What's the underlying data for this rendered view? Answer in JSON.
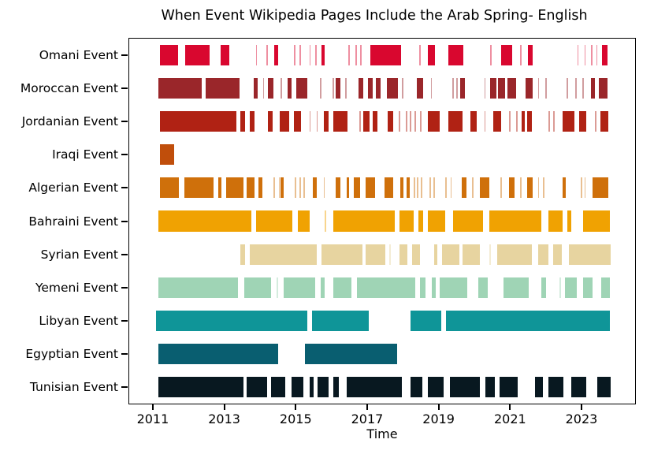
{
  "title": "When Event Wikipedia Pages Include the Arab Spring- English",
  "chart_data": {
    "type": "bar",
    "subtype": "broken-bar-timeline",
    "title": "When Event Wikipedia Pages Include the Arab Spring- English",
    "xlabel": "Time",
    "ylabel": "",
    "grid": false,
    "legend": "none",
    "xlim": [
      2010.34,
      2024.5
    ],
    "x_ticks": [
      "2011",
      "2013",
      "2015",
      "2017",
      "2019",
      "2021",
      "2023"
    ],
    "x_tick_values": [
      2011,
      2013,
      2015,
      2017,
      2019,
      2021,
      2023
    ],
    "rows": [
      {
        "label": "Omani Event",
        "color": "#d9072f",
        "segments": [
          [
            2011.2,
            2011.7
          ],
          [
            2011.9,
            2012.6
          ],
          [
            2012.9,
            2013.15
          ],
          [
            2013.88,
            2013.92
          ],
          [
            2014.18,
            2014.22
          ],
          [
            2014.4,
            2014.5
          ],
          [
            2014.95,
            2014.99
          ],
          [
            2015.1,
            2015.14
          ],
          [
            2015.38,
            2015.42
          ],
          [
            2015.55,
            2015.59
          ],
          [
            2015.72,
            2015.82
          ],
          [
            2016.48,
            2016.52
          ],
          [
            2016.68,
            2016.72
          ],
          [
            2016.8,
            2016.84
          ],
          [
            2017.1,
            2017.95
          ],
          [
            2018.46,
            2018.5
          ],
          [
            2018.7,
            2018.9
          ],
          [
            2019.28,
            2019.7
          ],
          [
            2020.44,
            2020.48
          ],
          [
            2020.75,
            2021.05
          ],
          [
            2021.28,
            2021.32
          ],
          [
            2021.5,
            2021.64
          ],
          [
            2022.88,
            2022.92
          ],
          [
            2023.08,
            2023.12
          ],
          [
            2023.26,
            2023.3
          ],
          [
            2023.41,
            2023.45
          ],
          [
            2023.58,
            2023.72
          ]
        ]
      },
      {
        "label": "Moroccan Event",
        "color": "#9a262a",
        "segments": [
          [
            2011.15,
            2012.36
          ],
          [
            2012.47,
            2013.42
          ],
          [
            2013.82,
            2013.94
          ],
          [
            2014.08,
            2014.12
          ],
          [
            2014.22,
            2014.38
          ],
          [
            2014.58,
            2014.62
          ],
          [
            2014.77,
            2014.89
          ],
          [
            2015.02,
            2015.33
          ],
          [
            2015.68,
            2015.72
          ],
          [
            2016.03,
            2016.07
          ],
          [
            2016.12,
            2016.26
          ],
          [
            2016.38,
            2016.42
          ],
          [
            2016.76,
            2016.89
          ],
          [
            2017.02,
            2017.15
          ],
          [
            2017.24,
            2017.37
          ],
          [
            2017.55,
            2017.87
          ],
          [
            2017.98,
            2018.02
          ],
          [
            2018.4,
            2018.56
          ],
          [
            2018.78,
            2018.82
          ],
          [
            2019.38,
            2019.42
          ],
          [
            2019.5,
            2019.54
          ],
          [
            2019.61,
            2019.73
          ],
          [
            2020.28,
            2020.32
          ],
          [
            2020.45,
            2020.61
          ],
          [
            2020.67,
            2020.87
          ],
          [
            2020.92,
            2021.16
          ],
          [
            2021.44,
            2021.64
          ],
          [
            2021.78,
            2021.82
          ],
          [
            2021.98,
            2022.02
          ],
          [
            2022.58,
            2022.62
          ],
          [
            2022.83,
            2022.87
          ],
          [
            2023.03,
            2023.07
          ],
          [
            2023.27,
            2023.38
          ],
          [
            2023.48,
            2023.72
          ]
        ]
      },
      {
        "label": "Jordanian Event",
        "color": "#b02214",
        "segments": [
          [
            2011.2,
            2013.35
          ],
          [
            2013.45,
            2013.58
          ],
          [
            2013.71,
            2013.84
          ],
          [
            2014.22,
            2014.35
          ],
          [
            2014.55,
            2014.82
          ],
          [
            2014.95,
            2015.15
          ],
          [
            2015.38,
            2015.42
          ],
          [
            2015.58,
            2015.62
          ],
          [
            2015.79,
            2015.92
          ],
          [
            2016.05,
            2016.44
          ],
          [
            2016.78,
            2016.82
          ],
          [
            2016.9,
            2017.06
          ],
          [
            2017.15,
            2017.28
          ],
          [
            2017.58,
            2017.72
          ],
          [
            2017.88,
            2017.92
          ],
          [
            2018.08,
            2018.12
          ],
          [
            2018.2,
            2018.24
          ],
          [
            2018.33,
            2018.37
          ],
          [
            2018.48,
            2018.52
          ],
          [
            2018.7,
            2019.03
          ],
          [
            2019.28,
            2019.66
          ],
          [
            2019.9,
            2020.06
          ],
          [
            2020.28,
            2020.32
          ],
          [
            2020.53,
            2020.76
          ],
          [
            2020.98,
            2021.02
          ],
          [
            2021.18,
            2021.22
          ],
          [
            2021.33,
            2021.42
          ],
          [
            2021.48,
            2021.6
          ],
          [
            2022.08,
            2022.12
          ],
          [
            2022.2,
            2022.24
          ],
          [
            2022.46,
            2022.8
          ],
          [
            2022.94,
            2023.14
          ],
          [
            2023.38,
            2023.42
          ],
          [
            2023.52,
            2023.76
          ]
        ]
      },
      {
        "label": "Iraqi Event",
        "color": "#c04e0b",
        "segments": [
          [
            2011.2,
            2011.6
          ]
        ]
      },
      {
        "label": "Algerian Event",
        "color": "#cf700b",
        "segments": [
          [
            2011.2,
            2011.74
          ],
          [
            2011.89,
            2012.7
          ],
          [
            2012.83,
            2012.92
          ],
          [
            2013.05,
            2013.54
          ],
          [
            2013.63,
            2013.84
          ],
          [
            2013.96,
            2014.06
          ],
          [
            2014.38,
            2014.42
          ],
          [
            2014.52,
            2014.56
          ],
          [
            2014.58,
            2014.67
          ],
          [
            2014.98,
            2015.02
          ],
          [
            2015.1,
            2015.14
          ],
          [
            2015.22,
            2015.26
          ],
          [
            2015.49,
            2015.58
          ],
          [
            2015.78,
            2015.82
          ],
          [
            2016.12,
            2016.26
          ],
          [
            2016.42,
            2016.5
          ],
          [
            2016.63,
            2016.8
          ],
          [
            2016.96,
            2017.23
          ],
          [
            2017.48,
            2017.73
          ],
          [
            2017.93,
            2018.02
          ],
          [
            2018.1,
            2018.2
          ],
          [
            2018.3,
            2018.34
          ],
          [
            2018.4,
            2018.44
          ],
          [
            2018.5,
            2018.54
          ],
          [
            2018.74,
            2018.78
          ],
          [
            2018.85,
            2018.89
          ],
          [
            2019.18,
            2019.22
          ],
          [
            2019.33,
            2019.37
          ],
          [
            2019.64,
            2019.77
          ],
          [
            2019.93,
            2019.97
          ],
          [
            2020.15,
            2020.43
          ],
          [
            2020.73,
            2020.77
          ],
          [
            2020.96,
            2021.12
          ],
          [
            2021.28,
            2021.32
          ],
          [
            2021.48,
            2021.64
          ],
          [
            2021.78,
            2021.82
          ],
          [
            2021.93,
            2021.97
          ],
          [
            2022.46,
            2022.55
          ],
          [
            2022.98,
            2023.02
          ],
          [
            2023.08,
            2023.12
          ],
          [
            2023.3,
            2023.76
          ]
        ]
      },
      {
        "label": "Bahraini Event",
        "color": "#f0a202",
        "segments": [
          [
            2011.16,
            2013.75
          ],
          [
            2013.9,
            2014.9
          ],
          [
            2015.06,
            2015.4
          ],
          [
            2015.82,
            2015.86
          ],
          [
            2016.05,
            2017.77
          ],
          [
            2017.9,
            2018.3
          ],
          [
            2018.44,
            2018.56
          ],
          [
            2018.7,
            2019.18
          ],
          [
            2019.4,
            2020.24
          ],
          [
            2020.42,
            2021.88
          ],
          [
            2022.07,
            2022.47
          ],
          [
            2022.6,
            2022.72
          ],
          [
            2023.04,
            2023.8
          ]
        ]
      },
      {
        "label": "Syrian Event",
        "color": "#e7d4a0",
        "segments": [
          [
            2013.46,
            2013.58
          ],
          [
            2013.72,
            2015.58
          ],
          [
            2015.72,
            2016.86
          ],
          [
            2016.96,
            2017.5
          ],
          [
            2017.62,
            2017.66
          ],
          [
            2017.9,
            2018.12
          ],
          [
            2018.26,
            2018.48
          ],
          [
            2018.87,
            2018.96
          ],
          [
            2019.1,
            2019.58
          ],
          [
            2019.68,
            2020.16
          ],
          [
            2020.42,
            2020.46
          ],
          [
            2020.64,
            2021.6
          ],
          [
            2021.78,
            2022.07
          ],
          [
            2022.2,
            2022.44
          ],
          [
            2022.64,
            2023.82
          ]
        ]
      },
      {
        "label": "Yemeni Event",
        "color": "#9fd4b5",
        "segments": [
          [
            2011.16,
            2013.39
          ],
          [
            2013.56,
            2014.3
          ],
          [
            2014.46,
            2014.5
          ],
          [
            2014.66,
            2015.54
          ],
          [
            2015.69,
            2015.8
          ],
          [
            2016.05,
            2016.57
          ],
          [
            2016.72,
            2018.34
          ],
          [
            2018.47,
            2018.63
          ],
          [
            2018.8,
            2018.92
          ],
          [
            2019.02,
            2019.8
          ],
          [
            2020.12,
            2020.38
          ],
          [
            2020.82,
            2021.52
          ],
          [
            2021.88,
            2022.0
          ],
          [
            2022.38,
            2022.42
          ],
          [
            2022.54,
            2022.87
          ],
          [
            2023.04,
            2023.3
          ],
          [
            2023.56,
            2023.8
          ]
        ]
      },
      {
        "label": "Libyan Event",
        "color": "#0f9598",
        "segments": [
          [
            2011.08,
            2015.32
          ],
          [
            2015.46,
            2017.05
          ],
          [
            2018.22,
            2019.07
          ],
          [
            2019.2,
            2023.8
          ]
        ]
      },
      {
        "label": "Egyptian Event",
        "color": "#095e70",
        "segments": [
          [
            2011.16,
            2014.5
          ],
          [
            2015.25,
            2017.83
          ]
        ]
      },
      {
        "label": "Tunisian Event",
        "color": "#081820",
        "segments": [
          [
            2011.16,
            2013.53
          ],
          [
            2013.63,
            2014.19
          ],
          [
            2014.3,
            2014.7
          ],
          [
            2014.89,
            2015.21
          ],
          [
            2015.4,
            2015.51
          ],
          [
            2015.62,
            2015.91
          ],
          [
            2016.06,
            2016.2
          ],
          [
            2016.43,
            2017.97
          ],
          [
            2018.22,
            2018.55
          ],
          [
            2018.7,
            2019.14
          ],
          [
            2019.32,
            2020.16
          ],
          [
            2020.3,
            2020.57
          ],
          [
            2020.7,
            2021.22
          ],
          [
            2021.7,
            2021.92
          ],
          [
            2022.07,
            2022.5
          ],
          [
            2022.72,
            2023.13
          ],
          [
            2023.45,
            2023.82
          ]
        ]
      }
    ]
  }
}
